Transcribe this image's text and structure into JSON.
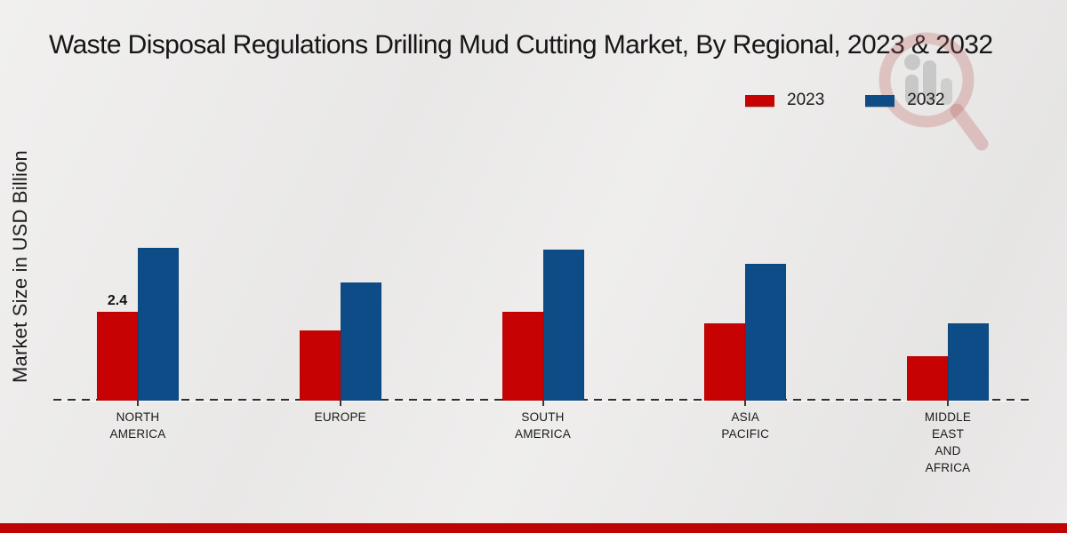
{
  "title": "Waste Disposal Regulations Drilling Mud Cutting Market, By Regional, 2023 & 2032",
  "y_axis_label": "Market Size in USD Billion",
  "legend": [
    {
      "label": "2023",
      "color": "#c70202"
    },
    {
      "label": "2032",
      "color": "#0d4c86"
    }
  ],
  "chart_data": {
    "type": "bar",
    "title": "Waste Disposal Regulations Drilling Mud Cutting Market, By Regional, 2023 & 2032",
    "xlabel": "",
    "ylabel": "Market Size in USD Billion",
    "categories": [
      "NORTH AMERICA",
      "EUROPE",
      "SOUTH AMERICA",
      "ASIA PACIFIC",
      "MIDDLE EAST AND AFRICA"
    ],
    "series": [
      {
        "name": "2023",
        "color": "#c70202",
        "values": [
          2.4,
          1.9,
          2.4,
          2.1,
          1.2
        ]
      },
      {
        "name": "2032",
        "color": "#0d4c86",
        "values": [
          4.15,
          3.2,
          4.1,
          3.7,
          2.1
        ]
      }
    ],
    "annotations": [
      {
        "series": "2023",
        "category_index": 0,
        "text": "2.4"
      }
    ],
    "ylim": [
      0,
      4.5
    ],
    "grid": false,
    "legend_position": "top-right",
    "baseline_style": "dashed",
    "y_axis_ticks_visible": false
  },
  "footer": {
    "bar_color": "#bf0303"
  },
  "watermark": {
    "name": "magnifier-bar-chart-logo",
    "ring_color": "rgba(190,95,95,0.30)",
    "bars_color": "rgba(140,140,140,0.35)"
  }
}
